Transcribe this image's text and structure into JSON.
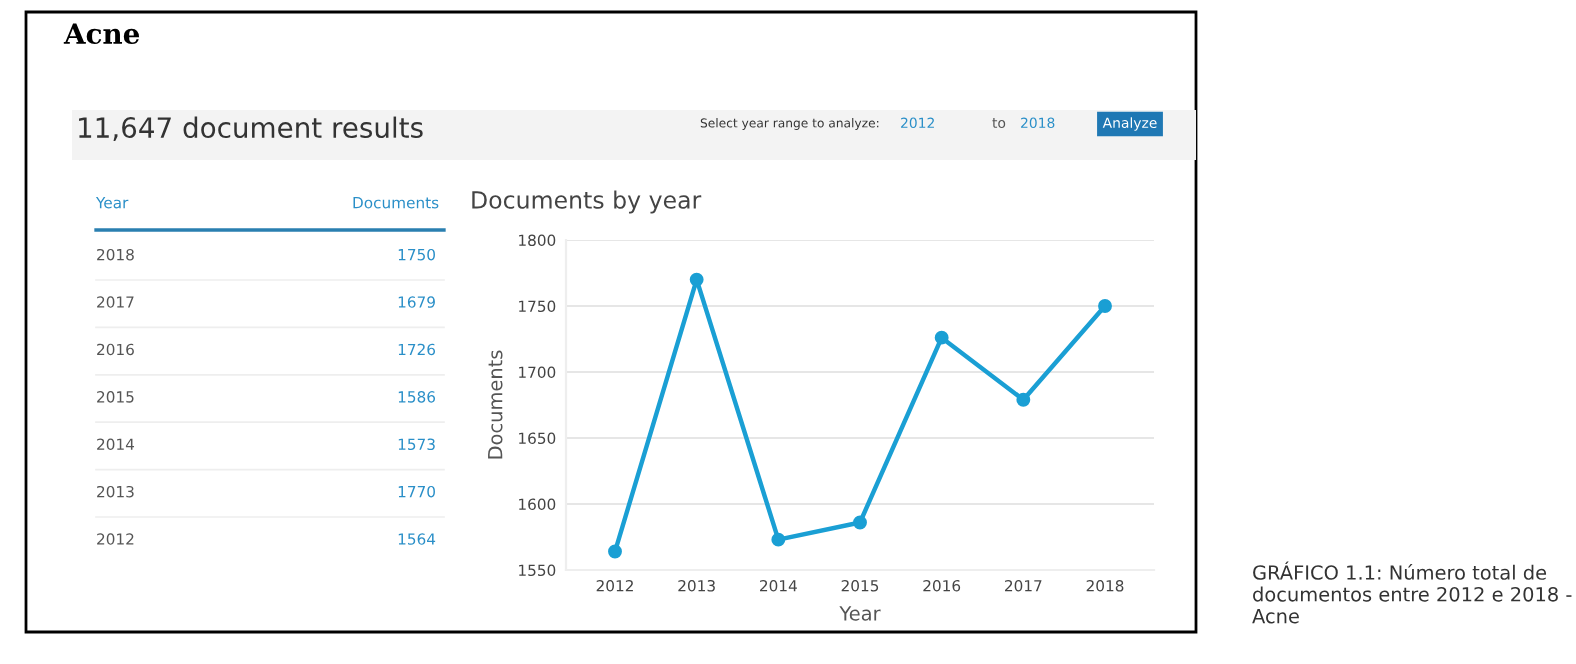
{
  "chart_data": {
    "type": "line",
    "title": "Documents by year",
    "xlabel": "Year",
    "ylabel": "Documents",
    "categories": [
      "2012",
      "2013",
      "2014",
      "2015",
      "2016",
      "2017",
      "2018"
    ],
    "series": [
      {
        "color": "#1a9fd4",
        "values": [
          1564,
          1770,
          1573,
          1586,
          1726,
          1679,
          1750
        ]
      }
    ],
    "ylim": [
      1550,
      1800
    ],
    "yticks": [
      1550,
      1600,
      1650,
      1700,
      1750,
      1800
    ],
    "grid": "y",
    "marker": "circle",
    "line_style": "solid",
    "annotations": [
      "Acne",
      "11,647 document results",
      "Select year range to analyze:",
      "2012",
      "to",
      "2018",
      "Analyze",
      "Year",
      "Documents",
      "GRÁFICO 1.1: Número total de documentos entre 2012 e 2018 - Acne",
      "1750",
      "1679",
      "1726",
      "1586",
      "1573",
      "1770",
      "1564"
    ]
  }
}
